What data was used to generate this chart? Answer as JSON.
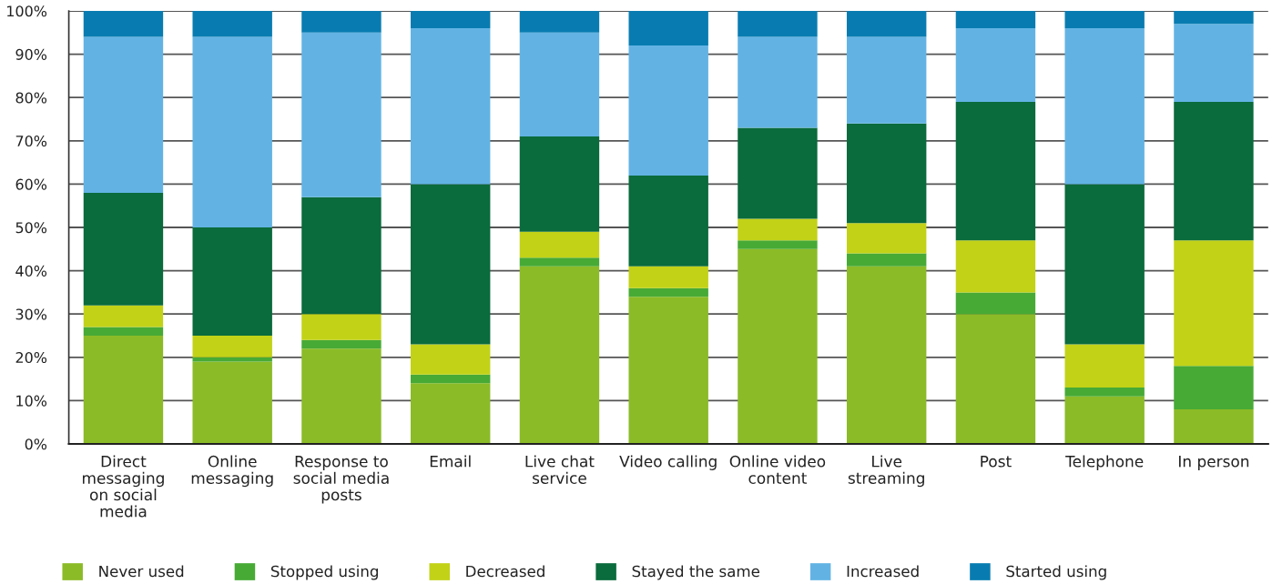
{
  "chart_data": {
    "type": "bar",
    "stacked": true,
    "categories": [
      "Direct\nmessaging\non social\nmedia",
      "Online\nmessaging",
      "Response to\nsocial media\nposts",
      "Email",
      "Live chat\nservice",
      "Video calling",
      "Online video\ncontent",
      "Live\nstreaming",
      "Post",
      "Telephone",
      "In person"
    ],
    "series": [
      {
        "name": "Never used",
        "color": "#8bbb27",
        "values": [
          25,
          19,
          22,
          14,
          41,
          34,
          45,
          41,
          30,
          11,
          8
        ]
      },
      {
        "name": "Stopped using",
        "color": "#47aa35",
        "values": [
          2,
          1,
          2,
          2,
          2,
          2,
          2,
          3,
          5,
          2,
          10
        ]
      },
      {
        "name": "Decreased",
        "color": "#c2d217",
        "values": [
          5,
          5,
          6,
          7,
          6,
          5,
          5,
          7,
          12,
          10,
          29
        ]
      },
      {
        "name": "Stayed the same",
        "color": "#0a6b3c",
        "values": [
          26,
          25,
          27,
          37,
          22,
          21,
          21,
          23,
          32,
          37,
          32
        ]
      },
      {
        "name": "Increased",
        "color": "#62b3e4",
        "values": [
          36,
          44,
          38,
          36,
          24,
          30,
          21,
          20,
          17,
          36,
          18
        ]
      },
      {
        "name": "Started using",
        "color": "#087cb1",
        "values": [
          6,
          6,
          5,
          4,
          5,
          8,
          6,
          6,
          4,
          4,
          3
        ]
      }
    ],
    "ylim": [
      0,
      100
    ],
    "yticks": [
      {
        "value": 0,
        "label": "0%"
      },
      {
        "value": 10,
        "label": "10%"
      },
      {
        "value": 20,
        "label": "20%"
      },
      {
        "value": 30,
        "label": "30%"
      },
      {
        "value": 40,
        "label": "40%"
      },
      {
        "value": 50,
        "label": "50%"
      },
      {
        "value": 60,
        "label": "60%"
      },
      {
        "value": 70,
        "label": "70%"
      },
      {
        "value": 80,
        "label": "80%"
      },
      {
        "value": 90,
        "label": "90%"
      },
      {
        "value": 100,
        "label": "100%"
      }
    ],
    "grid": "y",
    "legend": "bottom"
  }
}
